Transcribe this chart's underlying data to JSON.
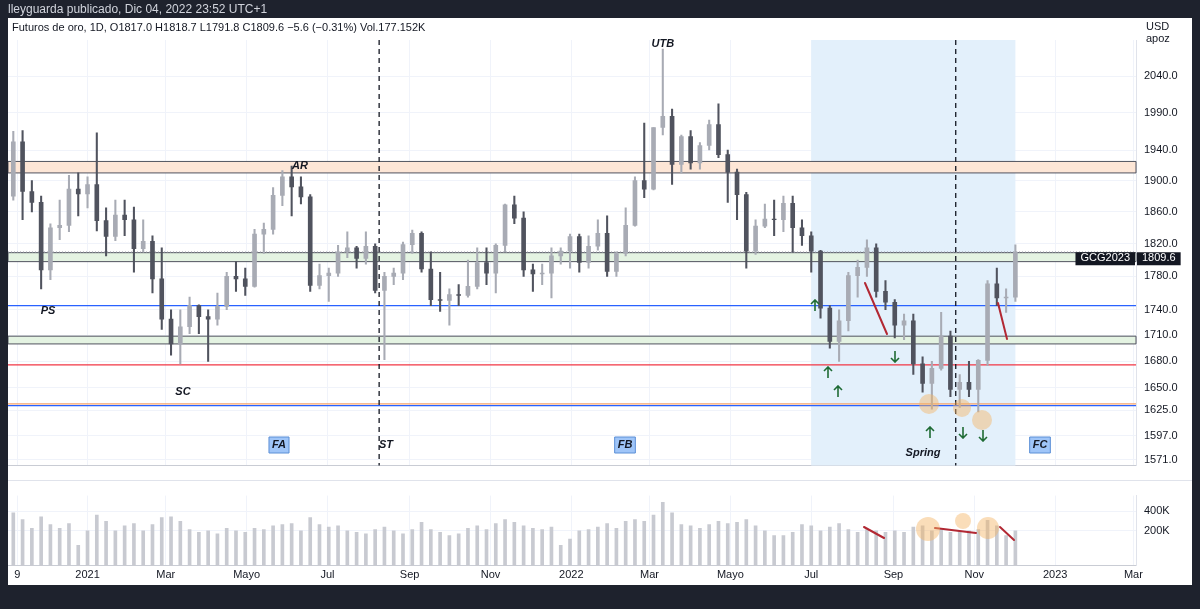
{
  "chart_data": [
    {
      "type": "candlestick",
      "subtitle": "lleyguarda publicado, Dic 04, 2022 23:52 UTC+1",
      "title": "Futuros de oro, 1D, O1817.0 H1818.7 L1791.8 C1809.6 −5.6 (−0.31%) Vol.177.152K",
      "ylabel": "USD apoz",
      "colors": [
        "#a8abb4",
        "#50535e",
        "#50535e",
        "#50535e",
        "#a8abb4",
        "#a8abb4",
        "#a8abb4",
        "#50535e",
        "#a8abb4",
        "#50535e",
        "#50535e",
        "#a8abb4",
        "#50535e",
        "#50535e",
        "#a8abb4",
        "#50535e",
        "#50535e",
        "#50535e",
        "#a8abb4",
        "#a8abb4",
        "#50535e",
        "#50535e",
        "#a8abb4",
        "#a8abb4",
        "#50535e",
        "#50535e",
        "#a8abb4",
        "#a8abb4",
        "#a8abb4",
        "#a8abb4",
        "#50535e",
        "#50535e",
        "#50535e",
        "#a8abb4",
        "#a8abb4",
        "#a8abb4",
        "#a8abb4",
        "#50535e",
        "#a8abb4",
        "#50535e",
        "#a8abb4",
        "#a8abb4",
        "#a8abb4",
        "#a8abb4",
        "#50535e",
        "#50535e",
        "#50535e",
        "#a8abb4",
        "#50535e",
        "#a8abb4",
        "#a8abb4",
        "#50535e",
        "#a8abb4",
        "#a8abb4",
        "#50535e",
        "#50535e",
        "#50535e",
        "#a8abb4",
        "#a8abb4",
        "#a8abb4",
        "#a8abb4",
        "#50535e",
        "#a8abb4",
        "#a8abb4",
        "#50535e",
        "#a8abb4",
        "#a8abb4",
        "#a8abb4",
        "#50535e",
        "#a8abb4",
        "#a8abb4",
        "#50535e",
        "#a8abb4",
        "#50535e",
        "#a8abb4",
        "#a8abb4",
        "#50535e",
        "#50535e",
        "#50535e",
        "#50535e",
        "#a8abb4",
        "#a8abb4",
        "#50535e",
        "#a8abb4",
        "#50535e",
        "#50535e",
        "#50535e",
        "#50535e",
        "#50535e",
        "#a8abb4",
        "#a8abb4",
        "#a8abb4",
        "#a8abb4",
        "#50535e",
        "#50535e",
        "#50535e",
        "#a8abb4",
        "#50535e",
        "#50535e",
        "#a8abb4",
        "#a8abb4",
        "#50535e",
        "#a8abb4",
        "#50535e",
        "#a8abb4",
        "#a8abb4",
        "#50535e",
        "#a8abb4",
        "#a8abb4"
      ],
      "x": [
        "2020-11-06",
        "2020-11-13",
        "2020-11-20",
        "2020-11-27",
        "2020-12-04",
        "2020-12-11",
        "2020-12-18",
        "2020-12-25",
        "2021-01-01",
        "2021-01-08",
        "2021-01-15",
        "2021-01-22",
        "2021-01-29",
        "2021-02-05",
        "2021-02-12",
        "2021-02-19",
        "2021-02-26",
        "2021-03-05",
        "2021-03-12",
        "2021-03-19",
        "2021-03-26",
        "2021-04-02",
        "2021-04-09",
        "2021-04-16",
        "2021-04-23",
        "2021-04-30",
        "2021-05-07",
        "2021-05-14",
        "2021-05-21",
        "2021-05-28",
        "2021-06-04",
        "2021-06-11",
        "2021-06-18",
        "2021-06-25",
        "2021-07-02",
        "2021-07-09",
        "2021-07-16",
        "2021-07-23",
        "2021-07-30",
        "2021-08-06",
        "2021-08-13",
        "2021-08-20",
        "2021-08-27",
        "2021-09-03",
        "2021-09-10",
        "2021-09-17",
        "2021-09-24",
        "2021-10-01",
        "2021-10-08",
        "2021-10-15",
        "2021-10-22",
        "2021-10-29",
        "2021-11-05",
        "2021-11-12",
        "2021-11-19",
        "2021-11-26",
        "2021-12-03",
        "2021-12-10",
        "2021-12-17",
        "2021-12-24",
        "2021-12-31",
        "2022-01-07",
        "2022-01-14",
        "2022-01-21",
        "2022-01-28",
        "2022-02-04",
        "2022-02-11",
        "2022-02-18",
        "2022-02-25",
        "2022-03-04",
        "2022-03-11",
        "2022-03-18",
        "2022-03-25",
        "2022-04-01",
        "2022-04-08",
        "2022-04-15",
        "2022-04-22",
        "2022-04-29",
        "2022-05-06",
        "2022-05-13",
        "2022-05-20",
        "2022-05-27",
        "2022-06-03",
        "2022-06-10",
        "2022-06-17",
        "2022-06-24",
        "2022-07-01",
        "2022-07-08",
        "2022-07-15",
        "2022-07-22",
        "2022-07-29",
        "2022-08-05",
        "2022-08-12",
        "2022-08-19",
        "2022-08-26",
        "2022-09-02",
        "2022-09-09",
        "2022-09-16",
        "2022-09-23",
        "2022-09-30",
        "2022-10-07",
        "2022-10-14",
        "2022-10-21",
        "2022-10-28",
        "2022-11-04",
        "2022-11-11",
        "2022-11-18",
        "2022-11-25",
        "2022-12-02"
      ],
      "ohlc": [
        [
          1880,
          1965,
          1875,
          1951
        ],
        [
          1951,
          1966,
          1850,
          1886
        ],
        [
          1886,
          1900,
          1860,
          1872
        ],
        [
          1872,
          1880,
          1765,
          1788
        ],
        [
          1788,
          1845,
          1776,
          1840
        ],
        [
          1840,
          1875,
          1825,
          1843
        ],
        [
          1843,
          1907,
          1835,
          1889
        ],
        [
          1889,
          1910,
          1855,
          1883
        ],
        [
          1883,
          1905,
          1865,
          1895
        ],
        [
          1895,
          1963,
          1836,
          1849
        ],
        [
          1849,
          1865,
          1805,
          1829
        ],
        [
          1829,
          1875,
          1824,
          1856
        ],
        [
          1856,
          1875,
          1830,
          1850
        ],
        [
          1850,
          1866,
          1785,
          1814
        ],
        [
          1814,
          1850,
          1810,
          1823
        ],
        [
          1823,
          1830,
          1760,
          1777
        ],
        [
          1777,
          1815,
          1717,
          1729
        ],
        [
          1729,
          1740,
          1687,
          1700
        ],
        [
          1700,
          1740,
          1677,
          1720
        ],
        [
          1720,
          1755,
          1712,
          1745
        ],
        [
          1745,
          1746,
          1712,
          1732
        ],
        [
          1732,
          1740,
          1680,
          1729
        ],
        [
          1729,
          1760,
          1722,
          1744
        ],
        [
          1744,
          1785,
          1740,
          1780
        ],
        [
          1780,
          1798,
          1762,
          1777
        ],
        [
          1777,
          1790,
          1757,
          1768
        ],
        [
          1768,
          1838,
          1767,
          1832
        ],
        [
          1832,
          1846,
          1808,
          1838
        ],
        [
          1838,
          1891,
          1832,
          1881
        ],
        [
          1881,
          1913,
          1868,
          1905
        ],
        [
          1905,
          1919,
          1855,
          1892
        ],
        [
          1892,
          1905,
          1870,
          1879
        ],
        [
          1879,
          1882,
          1762,
          1769
        ],
        [
          1769,
          1795,
          1765,
          1781
        ],
        [
          1781,
          1790,
          1750,
          1784
        ],
        [
          1784,
          1818,
          1780,
          1810
        ],
        [
          1810,
          1835,
          1803,
          1815
        ],
        [
          1815,
          1817,
          1790,
          1802
        ],
        [
          1802,
          1835,
          1795,
          1817
        ],
        [
          1817,
          1820,
          1760,
          1763
        ],
        [
          1763,
          1785,
          1682,
          1780
        ],
        [
          1780,
          1790,
          1770,
          1784
        ],
        [
          1784,
          1822,
          1776,
          1819
        ],
        [
          1819,
          1837,
          1808,
          1833
        ],
        [
          1833,
          1835,
          1785,
          1789
        ],
        [
          1789,
          1810,
          1745,
          1752
        ],
        [
          1752,
          1785,
          1738,
          1751
        ],
        [
          1751,
          1765,
          1722,
          1758
        ],
        [
          1758,
          1770,
          1745,
          1757
        ],
        [
          1757,
          1800,
          1755,
          1768
        ],
        [
          1768,
          1815,
          1765,
          1797
        ],
        [
          1797,
          1815,
          1770,
          1784
        ],
        [
          1784,
          1820,
          1760,
          1818
        ],
        [
          1818,
          1870,
          1810,
          1869
        ],
        [
          1869,
          1880,
          1845,
          1852
        ],
        [
          1852,
          1860,
          1780,
          1788
        ],
        [
          1788,
          1795,
          1762,
          1783
        ],
        [
          1783,
          1795,
          1770,
          1784
        ],
        [
          1784,
          1815,
          1754,
          1805
        ],
        [
          1805,
          1815,
          1795,
          1811
        ],
        [
          1811,
          1832,
          1790,
          1829
        ],
        [
          1829,
          1832,
          1785,
          1797
        ],
        [
          1797,
          1830,
          1790,
          1817
        ],
        [
          1817,
          1850,
          1812,
          1833
        ],
        [
          1833,
          1855,
          1780,
          1786
        ],
        [
          1786,
          1810,
          1780,
          1808
        ],
        [
          1808,
          1865,
          1805,
          1843
        ],
        [
          1843,
          1905,
          1842,
          1900
        ],
        [
          1900,
          1976,
          1878,
          1889
        ],
        [
          1889,
          1970,
          1888,
          1970
        ],
        [
          1970,
          2078,
          1960,
          1985
        ],
        [
          1985,
          1995,
          1895,
          1921
        ],
        [
          1921,
          1960,
          1910,
          1958
        ],
        [
          1958,
          1966,
          1915,
          1923
        ],
        [
          1923,
          1950,
          1915,
          1946
        ],
        [
          1946,
          1980,
          1940,
          1974
        ],
        [
          1974,
          2002,
          1930,
          1934
        ],
        [
          1934,
          1940,
          1872,
          1911
        ],
        [
          1911,
          1915,
          1850,
          1882
        ],
        [
          1882,
          1885,
          1790,
          1811
        ],
        [
          1811,
          1850,
          1807,
          1842
        ],
        [
          1842,
          1870,
          1840,
          1851
        ],
        [
          1851,
          1875,
          1830,
          1850
        ],
        [
          1850,
          1880,
          1835,
          1871
        ],
        [
          1871,
          1880,
          1810,
          1840
        ],
        [
          1840,
          1850,
          1818,
          1830
        ],
        [
          1830,
          1835,
          1785,
          1811
        ],
        [
          1811,
          1812,
          1730,
          1742
        ],
        [
          1742,
          1745,
          1695,
          1703
        ],
        [
          1703,
          1740,
          1680,
          1727
        ],
        [
          1727,
          1785,
          1715,
          1781
        ],
        [
          1781,
          1800,
          1755,
          1791
        ],
        [
          1791,
          1825,
          1780,
          1815
        ],
        [
          1815,
          1820,
          1755,
          1762
        ],
        [
          1762,
          1775,
          1740,
          1749
        ],
        [
          1749,
          1752,
          1707,
          1722
        ],
        [
          1722,
          1735,
          1705,
          1727
        ],
        [
          1727,
          1735,
          1665,
          1677
        ],
        [
          1677,
          1685,
          1645,
          1655
        ],
        [
          1655,
          1680,
          1626,
          1672
        ],
        [
          1672,
          1737,
          1670,
          1709
        ],
        [
          1709,
          1715,
          1640,
          1648
        ],
        [
          1648,
          1665,
          1628,
          1656
        ],
        [
          1656,
          1680,
          1640,
          1648
        ],
        [
          1648,
          1682,
          1623,
          1681
        ],
        [
          1681,
          1775,
          1675,
          1771
        ],
        [
          1771,
          1790,
          1745,
          1754
        ],
        [
          1754,
          1765,
          1737,
          1755
        ],
        [
          1755,
          1818.7,
          1750,
          1809.6
        ]
      ],
      "log": true,
      "ylim": [
        1565,
        2091
      ],
      "yticks": [
        {
          "value": 1571,
          "label": "1571.0"
        },
        {
          "value": 1597,
          "label": "1597.0"
        },
        {
          "value": 1625,
          "label": "1625.0"
        },
        {
          "value": 1650,
          "label": "1650.0"
        },
        {
          "value": 1680,
          "label": "1680.0"
        },
        {
          "value": 1710,
          "label": "1710.0"
        },
        {
          "value": 1740,
          "label": "1740.0"
        },
        {
          "value": 1780,
          "label": "1780.0"
        },
        {
          "value": 1820,
          "label": "1820.0"
        },
        {
          "value": 1860,
          "label": "1860.0"
        },
        {
          "value": 1900,
          "label": "1900.0"
        },
        {
          "value": 1940,
          "label": "1940.0"
        },
        {
          "value": 1990,
          "label": "1990.0"
        },
        {
          "value": 2040,
          "label": "2040.0"
        }
      ],
      "xlim": [
        "2020-11-02",
        "2023-03-03"
      ],
      "xticks": [
        {
          "value": "2020-11-09",
          "label": null
        },
        {
          "value": "2021-01-01",
          "label": null
        },
        {
          "value": "2021-03-01",
          "label": null
        },
        {
          "value": "2021-05-01",
          "label": null
        },
        {
          "value": "2021-07-01",
          "label": null
        },
        {
          "value": "2021-09-01",
          "label": null
        },
        {
          "value": "2021-11-01",
          "label": null
        },
        {
          "value": "2022-01-01",
          "label": null
        },
        {
          "value": "2022-03-01",
          "label": null
        },
        {
          "value": "2022-05-01",
          "label": null
        },
        {
          "value": "2022-07-01",
          "label": null
        },
        {
          "value": "2022-09-01",
          "label": null
        },
        {
          "value": "2022-11-01",
          "label": null
        },
        {
          "value": "2023-01-01",
          "label": null
        },
        {
          "value": "2023-03-01",
          "label": null
        }
      ],
      "grid": true,
      "tick_labels": "y",
      "bands": [
        {
          "axis": "x",
          "from": "2022-07-01",
          "to": "2022-12-02",
          "color": "#e3f0fb"
        },
        {
          "axis": "y",
          "from": 1910,
          "to": 1925,
          "color": "#fde6d6"
        },
        {
          "axis": "y",
          "from": 1700,
          "to": 1709,
          "color": "#e4f3e2"
        },
        {
          "axis": "y",
          "from": 1798,
          "to": 1809,
          "color": "#e4f3e2"
        }
      ],
      "ref_lines": [
        {
          "axis": "y",
          "value": 1809.6,
          "label": "1809.6",
          "color": "#9598a1",
          "line_style": "dotted"
        },
        {
          "axis": "y",
          "value": 1745,
          "color": "#2962ff",
          "line_style": "solid"
        },
        {
          "axis": "y",
          "value": 1676,
          "color": "#f23645",
          "line_style": "solid"
        },
        {
          "axis": "y",
          "value": 1630,
          "color": "#2962ff",
          "line_style": "solid"
        },
        {
          "axis": "y",
          "value": 1632,
          "color": "#f7a36b",
          "line_style": "solid"
        },
        {
          "axis": "x",
          "value": "2021-08-09",
          "color": "#131722",
          "line_style": "dashed"
        },
        {
          "axis": "x",
          "value": "2022-10-18",
          "color": "#131722",
          "line_style": "dashed"
        }
      ],
      "annotations": [
        {
          "text": "UTB",
          "x": "2022-03-11",
          "y": 2085
        },
        "ST",
        "PS",
        "AR",
        "SC",
        "FA",
        "FB",
        "Spring",
        "FC",
        "GCG2023"
      ]
    },
    {
      "type": "bar",
      "color": "#c8cad1",
      "x": [
        "2020-11-06",
        "2020-11-13",
        "2020-11-20",
        "2020-11-27",
        "2020-12-04",
        "2020-12-11",
        "2020-12-18",
        "2020-12-25",
        "2021-01-01",
        "2021-01-08",
        "2021-01-15",
        "2021-01-22",
        "2021-01-29",
        "2021-02-05",
        "2021-02-12",
        "2021-02-19",
        "2021-02-26",
        "2021-03-05",
        "2021-03-12",
        "2021-03-19",
        "2021-03-26",
        "2021-04-02",
        "2021-04-09",
        "2021-04-16",
        "2021-04-23",
        "2021-04-30",
        "2021-05-07",
        "2021-05-14",
        "2021-05-21",
        "2021-05-28",
        "2021-06-04",
        "2021-06-11",
        "2021-06-18",
        "2021-06-25",
        "2021-07-02",
        "2021-07-09",
        "2021-07-16",
        "2021-07-23",
        "2021-07-30",
        "2021-08-06",
        "2021-08-13",
        "2021-08-20",
        "2021-08-27",
        "2021-09-03",
        "2021-09-10",
        "2021-09-17",
        "2021-09-24",
        "2021-10-01",
        "2021-10-08",
        "2021-10-15",
        "2021-10-22",
        "2021-10-29",
        "2021-11-05",
        "2021-11-12",
        "2021-11-19",
        "2021-11-26",
        "2021-12-03",
        "2021-12-10",
        "2021-12-17",
        "2021-12-24",
        "2021-12-31",
        "2022-01-07",
        "2022-01-14",
        "2022-01-21",
        "2022-01-28",
        "2022-02-04",
        "2022-02-11",
        "2022-02-18",
        "2022-02-25",
        "2022-03-04",
        "2022-03-11",
        "2022-03-18",
        "2022-03-25",
        "2022-04-01",
        "2022-04-08",
        "2022-04-15",
        "2022-04-22",
        "2022-04-29",
        "2022-05-06",
        "2022-05-13",
        "2022-05-20",
        "2022-05-27",
        "2022-06-03",
        "2022-06-10",
        "2022-06-17",
        "2022-06-24",
        "2022-07-01",
        "2022-07-08",
        "2022-07-15",
        "2022-07-22",
        "2022-07-29",
        "2022-08-05",
        "2022-08-12",
        "2022-08-19",
        "2022-08-26",
        "2022-09-02",
        "2022-09-09",
        "2022-09-16",
        "2022-09-23",
        "2022-09-30",
        "2022-10-07",
        "2022-10-14",
        "2022-10-21",
        "2022-10-28",
        "2022-11-04",
        "2022-11-11",
        "2022-11-18",
        "2022-11-25",
        "2022-12-02"
      ],
      "values": [
        380000,
        300000,
        220000,
        330000,
        250000,
        220000,
        260000,
        120000,
        200000,
        350000,
        280000,
        200000,
        240000,
        260000,
        200000,
        250000,
        320000,
        330000,
        280000,
        210000,
        190000,
        200000,
        180000,
        220000,
        200000,
        190000,
        220000,
        210000,
        240000,
        250000,
        260000,
        200000,
        320000,
        250000,
        230000,
        240000,
        200000,
        190000,
        180000,
        210000,
        230000,
        200000,
        180000,
        210000,
        270000,
        210000,
        190000,
        170000,
        180000,
        220000,
        240000,
        210000,
        260000,
        300000,
        270000,
        240000,
        220000,
        210000,
        230000,
        120000,
        150000,
        200000,
        210000,
        230000,
        260000,
        220000,
        280000,
        300000,
        280000,
        350000,
        550000,
        380000,
        250000,
        240000,
        220000,
        250000,
        280000,
        260000,
        270000,
        300000,
        240000,
        200000,
        170000,
        170000,
        190000,
        250000,
        240000,
        200000,
        230000,
        260000,
        210000,
        190000,
        210000,
        200000,
        190000,
        200000,
        190000,
        230000,
        240000,
        200000,
        210000,
        190000,
        200000,
        200000,
        210000,
        290000,
        240000,
        170000,
        200000
      ],
      "log": true,
      "ylim": [
        58000,
        700000
      ],
      "yticks": [
        {
          "value": 200000,
          "label": "200K"
        },
        {
          "value": 400000,
          "label": "400K"
        }
      ],
      "xlim": [
        "2020-11-02",
        "2023-03-03"
      ],
      "xticks": [
        {
          "value": "2020-11-09",
          "label": "9"
        },
        {
          "value": "2021-01-01",
          "label": "2021"
        },
        {
          "value": "2021-03-01",
          "label": "Mar"
        },
        {
          "value": "2021-05-01",
          "label": "Mayo"
        },
        {
          "value": "2021-07-01",
          "label": "Jul"
        },
        {
          "value": "2021-09-01",
          "label": "Sep"
        },
        {
          "value": "2021-11-01",
          "label": "Nov"
        },
        {
          "value": "2022-01-01",
          "label": "2022"
        },
        {
          "value": "2022-03-01",
          "label": "Mar"
        },
        {
          "value": "2022-05-01",
          "label": "Mayo"
        },
        {
          "value": "2022-07-01",
          "label": "Jul"
        },
        {
          "value": "2022-09-01",
          "label": "Sep"
        },
        {
          "value": "2022-11-01",
          "label": "Nov"
        },
        {
          "value": "2023-01-01",
          "label": "2023"
        },
        {
          "value": "2023-03-01",
          "label": "Mar"
        }
      ],
      "grid": true
    }
  ]
}
